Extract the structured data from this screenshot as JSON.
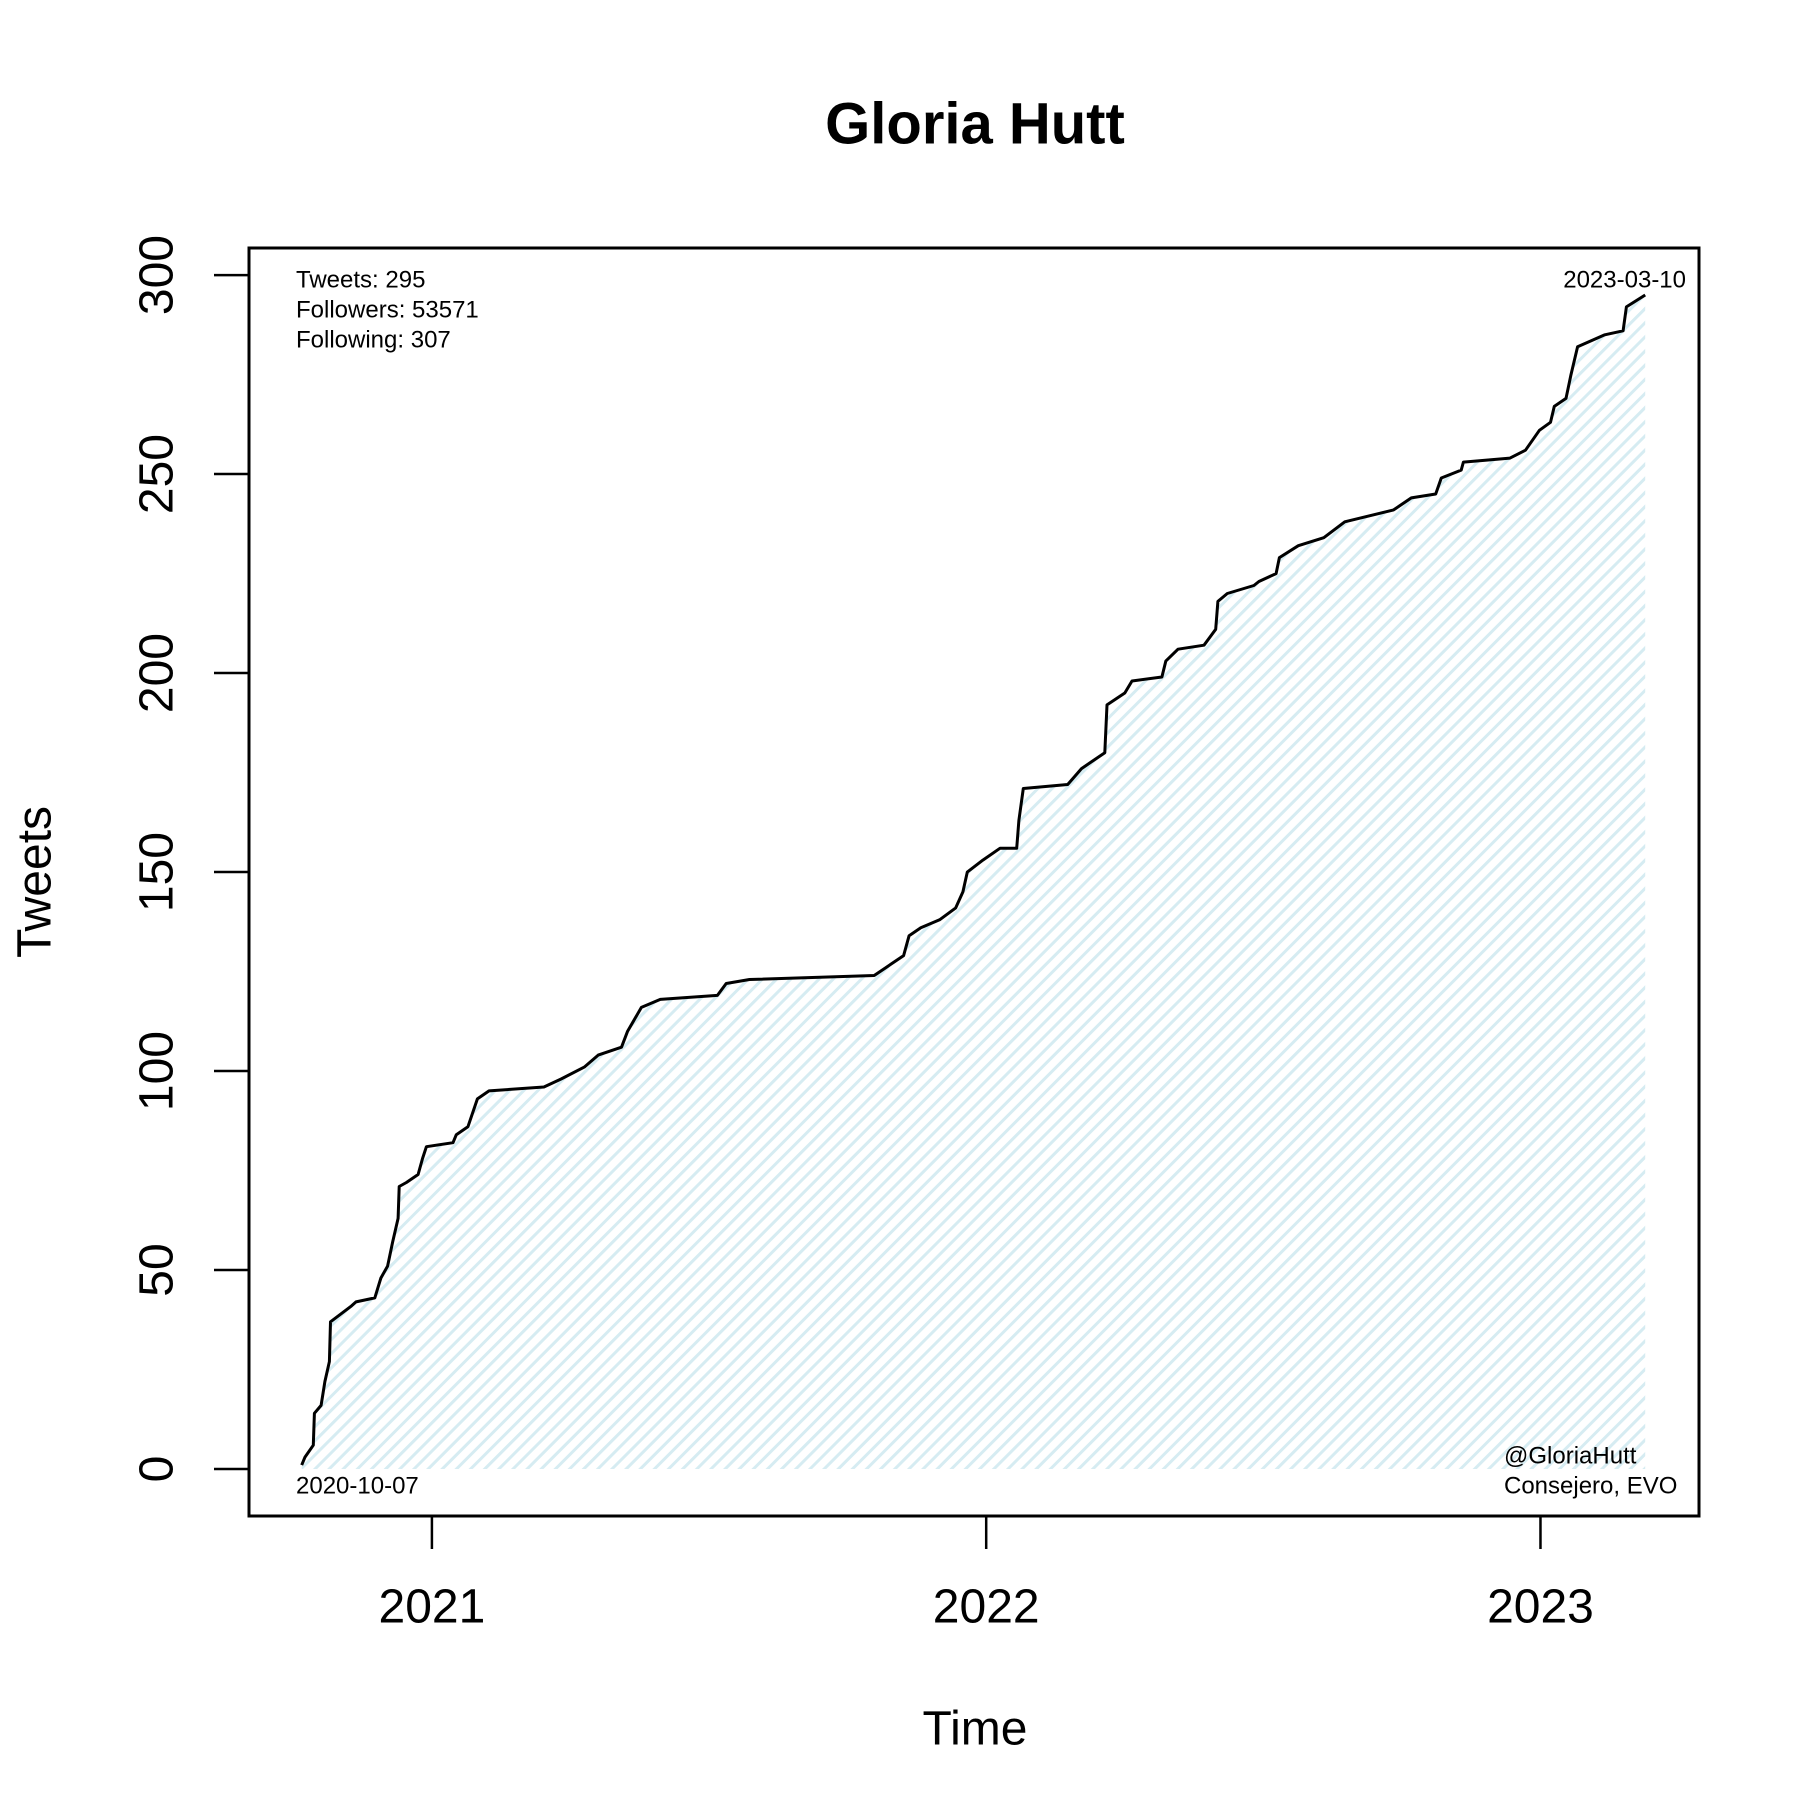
{
  "chart_data": {
    "type": "line",
    "title": "Gloria Hutt",
    "xlabel": "Time",
    "ylabel": "Tweets",
    "x": [
      2020.765,
      2020.771,
      2020.786,
      2020.788,
      2020.8,
      2020.807,
      2020.815,
      2020.817,
      2020.855,
      2020.863,
      2020.897,
      2020.908,
      2020.92,
      2020.929,
      2020.939,
      2020.941,
      2020.954,
      2020.975,
      2020.983,
      2020.99,
      2021.038,
      2021.044,
      2021.065,
      2021.082,
      2021.103,
      2021.202,
      2021.233,
      2021.275,
      2021.3,
      2021.342,
      2021.353,
      2021.378,
      2021.412,
      2021.515,
      2021.531,
      2021.573,
      2021.798,
      2021.819,
      2021.851,
      2021.861,
      2021.882,
      2021.916,
      2021.945,
      2021.958,
      2021.966,
      2021.994,
      2022.025,
      2022.055,
      2022.059,
      2022.067,
      2022.147,
      2022.172,
      2022.193,
      2022.214,
      2022.218,
      2022.25,
      2022.263,
      2022.317,
      2022.324,
      2022.346,
      2022.393,
      2022.414,
      2022.418,
      2022.435,
      2022.483,
      2022.492,
      2022.523,
      2022.529,
      2022.563,
      2022.609,
      2022.647,
      2022.735,
      2022.767,
      2022.811,
      2022.821,
      2022.857,
      2022.861,
      2022.945,
      2022.973,
      2022.998,
      2023.018,
      2023.025,
      2023.046,
      2023.055,
      2023.067,
      2023.116,
      2023.149,
      2023.155,
      2023.189
    ],
    "values": [
      1,
      3,
      6,
      14,
      16,
      22,
      27,
      37,
      41,
      42,
      43,
      48,
      51,
      57,
      63,
      71,
      72,
      74,
      78,
      81,
      82,
      84,
      86,
      93,
      95,
      96,
      98,
      101,
      104,
      106,
      110,
      116,
      118,
      119,
      122,
      123,
      124,
      126,
      129,
      134,
      136,
      138,
      141,
      145,
      150,
      153,
      156,
      156,
      163,
      171,
      172,
      176,
      178,
      180,
      192,
      195,
      198,
      199,
      203,
      206,
      207,
      211,
      218,
      220,
      222,
      223,
      225,
      229,
      232,
      234,
      238,
      241,
      244,
      245,
      249,
      251,
      253,
      254,
      256,
      261,
      263,
      267,
      269,
      275,
      282,
      285,
      286,
      292,
      295
    ],
    "color": "#000000",
    "fill_color": "#d6ecf2",
    "xlim": [
      2020.67,
      2023.286
    ],
    "xticks": [
      2021,
      2022,
      2023
    ],
    "ylim": [
      -11.8,
      306.8
    ],
    "yticks": [
      0,
      50,
      100,
      150,
      200,
      250,
      300
    ],
    "annotations": {
      "top_left": [
        "Tweets: 295",
        "Followers: 53571",
        "Following: 307"
      ],
      "top_right": [
        "2023-03-10"
      ],
      "bottom_left": [
        "2020-10-07"
      ],
      "bottom_right": [
        "@GloriaHutt",
        "Consejero, EVO"
      ]
    }
  }
}
